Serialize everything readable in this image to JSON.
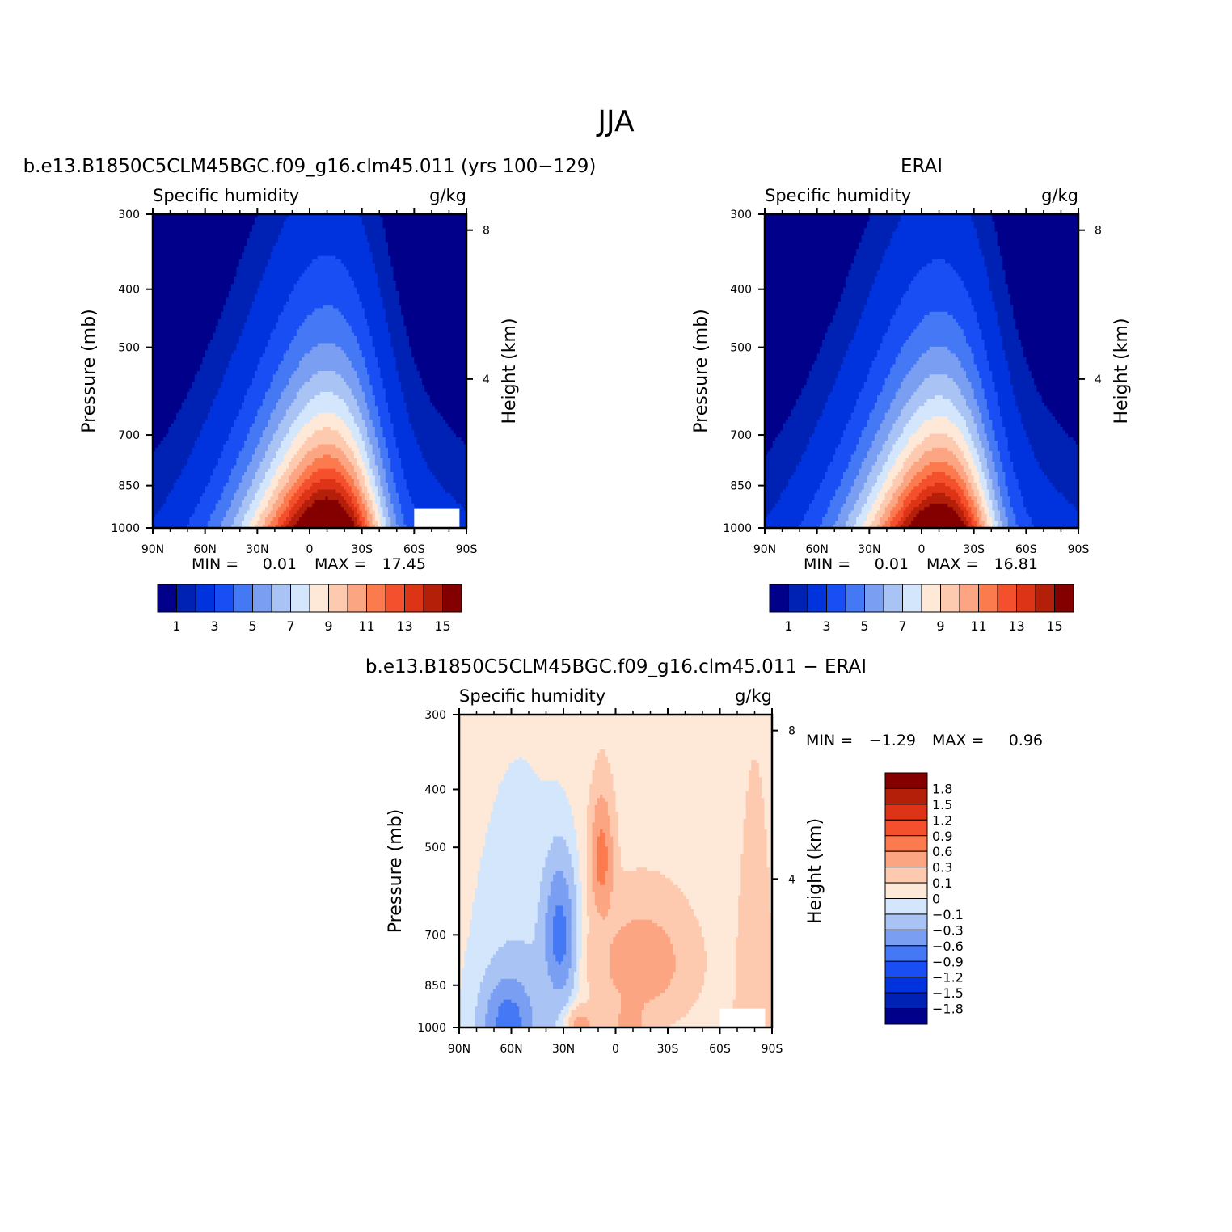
{
  "figure": {
    "title": "JJA"
  },
  "colors": {
    "abs_levels": [
      "#00008b",
      "#0022b4",
      "#0033dd",
      "#1a4ef5",
      "#4478f5",
      "#7a9ff2",
      "#a9c3f5",
      "#d3e6fb",
      "#fee8d8",
      "#fdcab0",
      "#fca583",
      "#fb7a4e",
      "#f5502d",
      "#dd3316",
      "#b41f0a",
      "#840000"
    ],
    "diff_levels": [
      "#00008b",
      "#0022b4",
      "#0033dd",
      "#1a4ef5",
      "#4478f5",
      "#7a9ff2",
      "#a9c3f5",
      "#d3e6fb",
      "#fee8d8",
      "#fdcab0",
      "#fca583",
      "#fb7a4e",
      "#f5502d",
      "#dd3316",
      "#b41f0a",
      "#840000"
    ]
  },
  "chart_data": [
    {
      "type": "heatmap",
      "panel_title": "b.e13.B1850C5CLM45BGC.f09_g16.clm45.011 (yrs 100−129)",
      "left_header": "Specific humidity",
      "right_header": "g/kg",
      "ylabel": "Pressure (mb)",
      "ylabel_right": "Height (km)",
      "x_ticks": [
        "90N",
        "60N",
        "30N",
        "0",
        "30S",
        "60S",
        "90S"
      ],
      "x_values": [
        90,
        60,
        30,
        0,
        -30,
        -60,
        -90
      ],
      "xlim": [
        90,
        -90
      ],
      "y_ticks": [
        "300",
        "400",
        "500",
        "700",
        "850",
        "1000"
      ],
      "y_values": [
        300,
        400,
        500,
        700,
        850,
        1000
      ],
      "ylim": [
        1000,
        300
      ],
      "y_scale": "log",
      "height_ticks": [
        "8",
        "4"
      ],
      "height_values": [
        8,
        4
      ],
      "min_label": "MIN =",
      "min_value": "0.01",
      "max_label": "MAX =",
      "max_value": "17.45",
      "colorbar_ticks": [
        "1",
        "3",
        "5",
        "7",
        "9",
        "11",
        "13",
        "15"
      ],
      "colorbar_levels": [
        0.5,
        1,
        2,
        3,
        4,
        5,
        6,
        7,
        8,
        9,
        10,
        11,
        12,
        13,
        14,
        15
      ],
      "peak_latitude": -10,
      "surface_value": 17.45
    },
    {
      "type": "heatmap",
      "panel_title": "ERAI",
      "left_header": "Specific humidity",
      "right_header": "g/kg",
      "ylabel": "Pressure (mb)",
      "ylabel_right": "Height (km)",
      "x_ticks": [
        "90N",
        "60N",
        "30N",
        "0",
        "30S",
        "60S",
        "90S"
      ],
      "x_values": [
        90,
        60,
        30,
        0,
        -30,
        -60,
        -90
      ],
      "xlim": [
        90,
        -90
      ],
      "y_ticks": [
        "300",
        "400",
        "500",
        "700",
        "850",
        "1000"
      ],
      "y_values": [
        300,
        400,
        500,
        700,
        850,
        1000
      ],
      "ylim": [
        1000,
        300
      ],
      "y_scale": "log",
      "height_ticks": [
        "8",
        "4"
      ],
      "height_values": [
        8,
        4
      ],
      "min_label": "MIN =",
      "min_value": "0.01",
      "max_label": "MAX =",
      "max_value": "16.81",
      "colorbar_ticks": [
        "1",
        "3",
        "5",
        "7",
        "9",
        "11",
        "13",
        "15"
      ],
      "colorbar_levels": [
        0.5,
        1,
        2,
        3,
        4,
        5,
        6,
        7,
        8,
        9,
        10,
        11,
        12,
        13,
        14,
        15
      ],
      "peak_latitude": -10,
      "surface_value": 16.81
    },
    {
      "type": "heatmap",
      "panel_title": "b.e13.B1850C5CLM45BGC.f09_g16.clm45.011 − ERAI",
      "left_header": "Specific humidity",
      "right_header": "g/kg",
      "ylabel": "Pressure (mb)",
      "ylabel_right": "Height (km)",
      "x_ticks": [
        "90N",
        "60N",
        "30N",
        "0",
        "30S",
        "60S",
        "90S"
      ],
      "x_values": [
        90,
        60,
        30,
        0,
        -30,
        -60,
        -90
      ],
      "xlim": [
        90,
        -90
      ],
      "y_ticks": [
        "300",
        "400",
        "500",
        "700",
        "850",
        "1000"
      ],
      "y_values": [
        300,
        400,
        500,
        700,
        850,
        1000
      ],
      "ylim": [
        1000,
        300
      ],
      "y_scale": "log",
      "height_ticks": [
        "8",
        "4"
      ],
      "height_values": [
        8,
        4
      ],
      "min_label": "MIN =",
      "min_value": "−1.29",
      "max_label": "MAX =",
      "max_value": "0.96",
      "colorbar_ticks": [
        "1.8",
        "1.5",
        "1.2",
        "0.9",
        "0.6",
        "0.3",
        "0.1",
        "0",
        "−0.1",
        "−0.3",
        "−0.6",
        "−0.9",
        "−1.2",
        "−1.5",
        "−1.8"
      ],
      "colorbar_levels": [
        -1.8,
        -1.5,
        -1.2,
        -0.9,
        -0.6,
        -0.3,
        -0.1,
        0,
        0.1,
        0.3,
        0.6,
        0.9,
        1.2,
        1.5,
        1.8
      ]
    }
  ]
}
